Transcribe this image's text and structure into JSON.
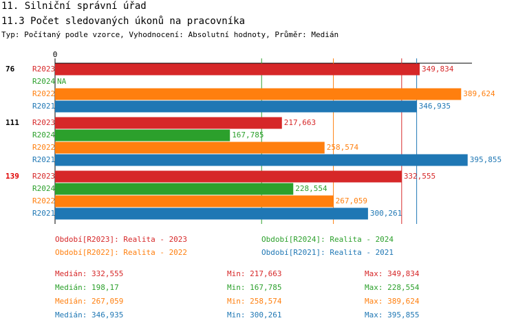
{
  "chart_data": {
    "type": "hbar",
    "title": "11. Silniční správní úřad",
    "subtitle": "11.3 Počet sledovaných úkonů na pracovníka",
    "note": "Typ: Počítaný podle vzorce, Vyhodnocení: Absolutní hodnoty, Průměr: Medián",
    "categories": [
      "76",
      "111",
      "139"
    ],
    "category_colors": [
      "#000000",
      "#000000",
      "#e00000"
    ],
    "xlim": [
      0,
      400
    ],
    "xticks": [
      0
    ],
    "series": [
      {
        "name": "R2023",
        "legend": "Období[R2023]: Realita - 2023",
        "color": "#d62728",
        "values": [
          349.834,
          217.663,
          332.555
        ],
        "value_labels": [
          "349,834",
          "217,663",
          "332,555"
        ],
        "stats": {
          "median": {
            "value": 332.555,
            "label": "Medián: 332,555"
          },
          "min": {
            "value": 217.663,
            "label": "Min: 217,663"
          },
          "max": {
            "value": 349.834,
            "label": "Max: 349,834"
          }
        }
      },
      {
        "name": "R2024",
        "legend": "Období[R2024]: Realita - 2024",
        "color": "#2ca02c",
        "values": [
          null,
          167.785,
          228.554
        ],
        "value_labels": [
          "NA",
          "167,785",
          "228,554"
        ],
        "stats": {
          "median": {
            "value": 198.17,
            "label": "Medián: 198,17"
          },
          "min": {
            "value": 167.785,
            "label": "Min: 167,785"
          },
          "max": {
            "value": 228.554,
            "label": "Max: 228,554"
          }
        }
      },
      {
        "name": "R2022",
        "legend": "Období[R2022]: Realita - 2022",
        "color": "#ff7f0e",
        "values": [
          389.624,
          258.574,
          267.059
        ],
        "value_labels": [
          "389,624",
          "258,574",
          "267,059"
        ],
        "stats": {
          "median": {
            "value": 267.059,
            "label": "Medián: 267,059"
          },
          "min": {
            "value": 258.574,
            "label": "Min: 258,574"
          },
          "max": {
            "value": 389.624,
            "label": "Max: 389,624"
          }
        }
      },
      {
        "name": "R2021",
        "legend": "Období[R2021]: Realita - 2021",
        "color": "#1f77b4",
        "values": [
          346.935,
          395.855,
          300.261
        ],
        "value_labels": [
          "346,935",
          "395,855",
          "300,261"
        ],
        "stats": {
          "median": {
            "value": 346.935,
            "label": "Medián: 346,935"
          },
          "min": {
            "value": 300.261,
            "label": "Min: 300,261"
          },
          "max": {
            "value": 395.855,
            "label": "Max: 395,855"
          }
        }
      }
    ]
  }
}
